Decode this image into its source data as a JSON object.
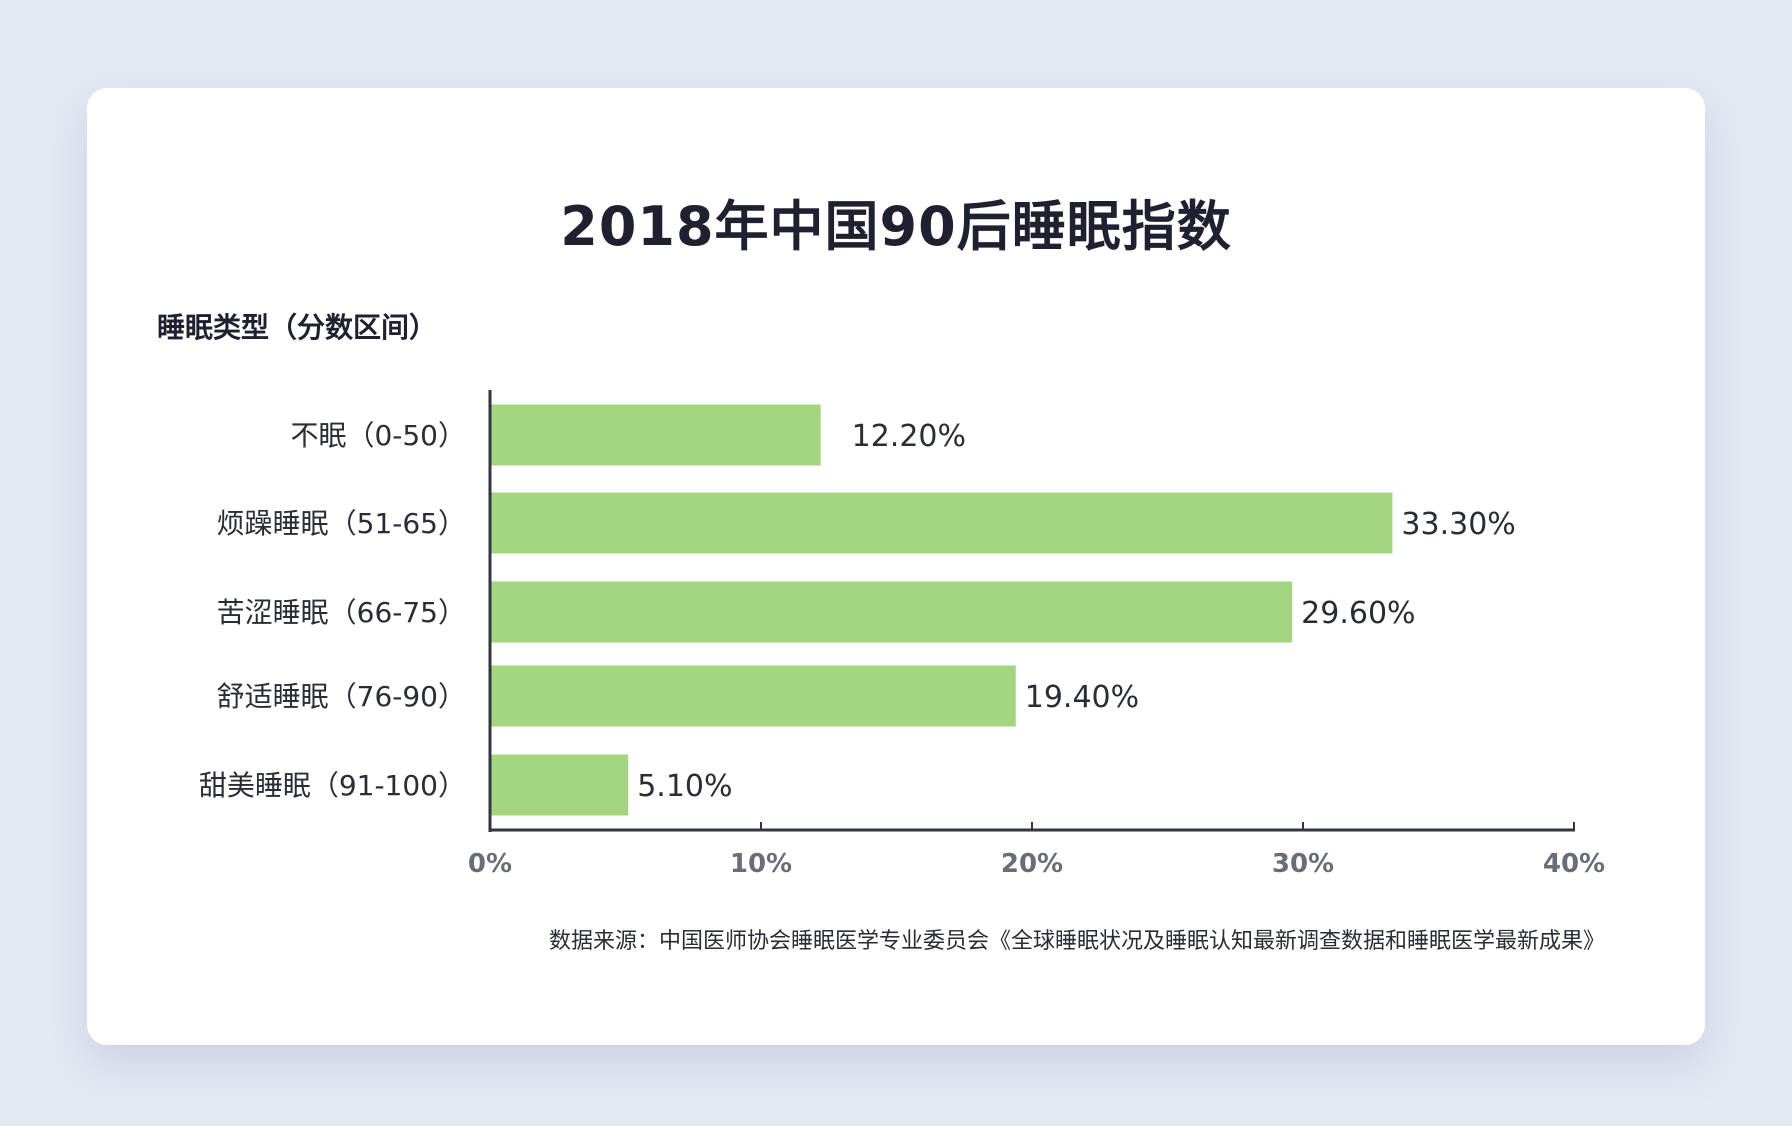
{
  "chart_data": {
    "type": "bar",
    "orientation": "horizontal",
    "title": "2018年中国90后睡眠指数",
    "ylabel": "睡眠类型（分数区间）",
    "xlabel": "",
    "categories": [
      "不眠（0-50）",
      "烦躁睡眠（51-65）",
      "苦涩睡眠（66-75）",
      "舒适睡眠（76-90）",
      "甜美睡眠（91-100）"
    ],
    "values": [
      12.2,
      33.3,
      29.6,
      19.4,
      5.1
    ],
    "value_labels": [
      "12.20%",
      "33.30%",
      "29.60%",
      "19.40%",
      "5.10%"
    ],
    "xlim": [
      0,
      40
    ],
    "xticks": [
      0,
      10,
      20,
      30,
      40
    ],
    "xtick_labels": [
      "0%",
      "10%",
      "20%",
      "30%",
      "40%"
    ],
    "grid": false,
    "legend": "none",
    "bar_color": "#a3d67f",
    "source": "数据来源：中国医师协会睡眠医学专业委员会《全球睡眠状况及睡眠认知最新调查数据和睡眠医学最新成果》"
  }
}
